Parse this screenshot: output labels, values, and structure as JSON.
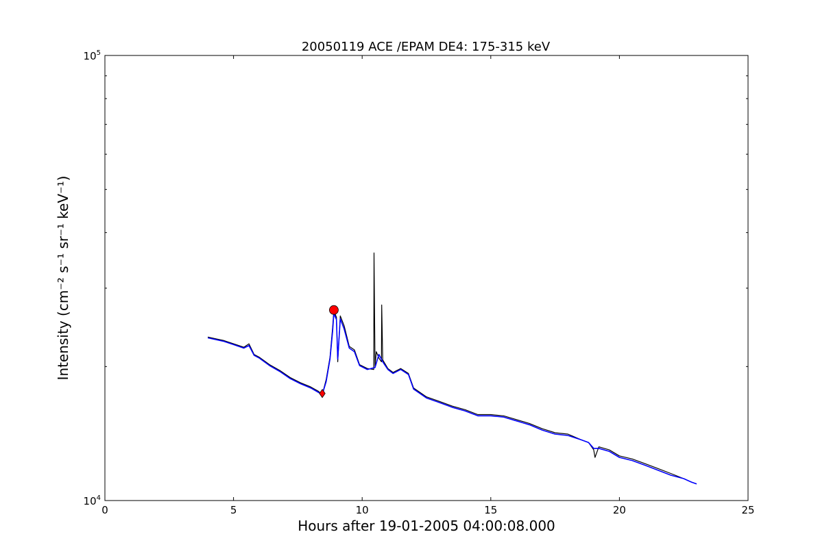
{
  "chart_data": {
    "type": "line",
    "title": "20050119 ACE /EPAM DE4: 175-315 keV",
    "xlabel": "Hours after 19-01-2005 04:00:08.000",
    "ylabel": "Intensity (cm⁻² s⁻¹ sr⁻¹ keV⁻¹)",
    "xlim": [
      0,
      25
    ],
    "ylim": [
      10000,
      100000
    ],
    "yscale": "log",
    "grid": false,
    "x_ticks": [
      0,
      5,
      10,
      15,
      20,
      25
    ],
    "x_tick_labels": [
      "0",
      "5",
      "10",
      "15",
      "20",
      "25"
    ],
    "y_ticks": [
      10000,
      100000
    ],
    "y_tick_labels": [
      {
        "base": "10",
        "exp": "4"
      },
      {
        "base": "10",
        "exp": "5"
      }
    ],
    "series": [
      {
        "color": "#000000",
        "style": "raw",
        "x": [
          4.0,
          4.3,
          4.6,
          5.0,
          5.4,
          5.6,
          5.8,
          6.0,
          6.4,
          6.8,
          7.2,
          7.6,
          8.0,
          8.3,
          8.45,
          8.6,
          8.75,
          8.85,
          8.9,
          9.0,
          9.05,
          9.15,
          9.3,
          9.5,
          9.7,
          9.9,
          10.2,
          10.45,
          10.46,
          10.5,
          10.55,
          10.65,
          10.75,
          10.76,
          10.8,
          11.0,
          11.2,
          11.5,
          11.8,
          12.0,
          12.5,
          13.0,
          13.5,
          14.0,
          14.5,
          15.0,
          15.5,
          16.0,
          16.5,
          17.0,
          17.5,
          18.0,
          18.5,
          18.8,
          19.0,
          19.05,
          19.2,
          19.6,
          20.0,
          20.5,
          21.0,
          21.5,
          22.0,
          22.5,
          22.8,
          23.0
        ],
        "y": [
          23300,
          23100,
          22900,
          22500,
          22100,
          22500,
          21300,
          21000,
          20200,
          19600,
          18900,
          18400,
          18000,
          17600,
          17300,
          18700,
          21000,
          24500,
          26700,
          25800,
          20500,
          26000,
          24700,
          22200,
          21800,
          20200,
          19800,
          19700,
          36000,
          20000,
          21600,
          20900,
          20500,
          27500,
          20700,
          19800,
          19400,
          19800,
          19300,
          17900,
          17100,
          16700,
          16300,
          16000,
          15600,
          15600,
          15500,
          15200,
          14900,
          14500,
          14200,
          14100,
          13700,
          13500,
          13000,
          12500,
          13200,
          13000,
          12600,
          12400,
          12100,
          11800,
          11500,
          11200,
          11000,
          10900
        ]
      },
      {
        "color": "#0000ff",
        "style": "smoothed",
        "x": [
          4.0,
          4.3,
          4.6,
          5.0,
          5.4,
          5.6,
          5.8,
          6.0,
          6.4,
          6.8,
          7.2,
          7.6,
          8.0,
          8.3,
          8.45,
          8.6,
          8.75,
          8.85,
          8.9,
          9.0,
          9.05,
          9.15,
          9.3,
          9.5,
          9.7,
          9.9,
          10.2,
          10.5,
          10.65,
          10.8,
          11.0,
          11.2,
          11.5,
          11.8,
          12.0,
          12.5,
          13.0,
          13.5,
          14.0,
          14.5,
          15.0,
          15.5,
          16.0,
          16.5,
          17.0,
          17.5,
          18.0,
          18.5,
          18.8,
          19.0,
          19.2,
          19.6,
          20.0,
          20.5,
          21.0,
          21.5,
          22.0,
          22.5,
          22.8,
          23.0
        ],
        "y": [
          23200,
          23000,
          22800,
          22400,
          22000,
          22300,
          21200,
          20900,
          20100,
          19500,
          18800,
          18300,
          17900,
          17500,
          17300,
          18500,
          20800,
          24000,
          26300,
          25500,
          20800,
          25600,
          24300,
          22000,
          21600,
          20100,
          19700,
          19900,
          21300,
          20500,
          19700,
          19300,
          19700,
          19200,
          17800,
          17000,
          16600,
          16200,
          15900,
          15500,
          15500,
          15400,
          15100,
          14800,
          14400,
          14100,
          14000,
          13700,
          13500,
          13100,
          13100,
          12900,
          12500,
          12300,
          12000,
          11700,
          11400,
          11200,
          11000,
          10900
        ]
      }
    ],
    "markers": [
      {
        "shape": "circle",
        "color": "#ff0000",
        "x": 8.9,
        "y": 26800
      },
      {
        "shape": "diamond",
        "color": "#ff0000",
        "x": 8.45,
        "y": 17400
      }
    ]
  }
}
